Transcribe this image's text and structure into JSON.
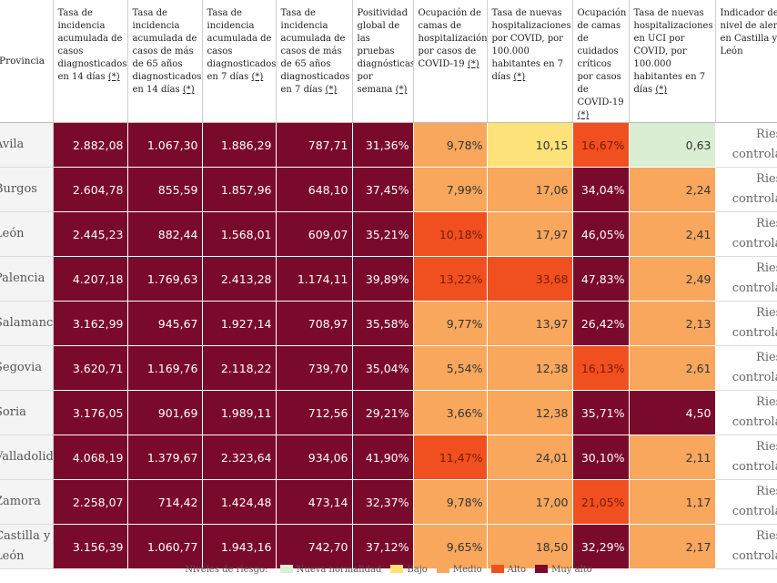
{
  "headers": [
    "Provincia",
    "Tasa de incidencia acumulada de casos diagnosticados en 14 días (*)",
    "Tasa de incidencia acumulada de casos de más de 65 años diagnosticados en 14 días (*)",
    "Tasa de incidencia acumulada de casos diagnosticados en 7 días (*)",
    "Tasa de incidencia acumulada de casos de más de 65 años diagnosticados en 7 días (*)",
    "Positividad global de las pruebas diagnósticas por semana (*)",
    "Ocupación de camas de hospitalización por casos de COVID-19 (*)",
    "Tasa de nuevas hospitalizaciones por COVID, por 100.000 habitantes en 7 días (*)",
    "Ocupación de camas de cuidados críticos por casos de COVID-19 (*)",
    "Tasa de nuevas hospitalizaciones en UCI por COVID, por 100.000 habitantes en 7 días (*)",
    "Indicador de nivel de alerta en Castilla y León"
  ],
  "colors": {
    "muy_alto": "#7a0a2c",
    "alto": "#f0501f",
    "medio": "#f8a75d",
    "bajo": "#fde27a",
    "nueva_normalidad": "#d9eed3"
  },
  "rows": [
    {
      "name": "Ávila",
      "values": [
        "2.882,08",
        "1.067,30",
        "1.886,29",
        "787,71",
        "31,36%",
        "9,78%",
        "10,15",
        "16,67%",
        "0,63"
      ],
      "levels": [
        "mu",
        "mu",
        "mu",
        "mu",
        "mu",
        "me",
        "ba",
        "al",
        "nn"
      ],
      "indicator": "Riesgo controlado"
    },
    {
      "name": "Burgos",
      "values": [
        "2.604,78",
        "855,59",
        "1.857,96",
        "648,10",
        "37,45%",
        "7,99%",
        "17,06",
        "34,04%",
        "2,24"
      ],
      "levels": [
        "mu",
        "mu",
        "mu",
        "mu",
        "mu",
        "me",
        "me",
        "mu",
        "me"
      ],
      "indicator": "Riesgo controlado"
    },
    {
      "name": "León",
      "values": [
        "2.445,23",
        "882,44",
        "1.568,01",
        "609,07",
        "35,21%",
        "10,18%",
        "17,97",
        "46,05%",
        "2,41"
      ],
      "levels": [
        "mu",
        "mu",
        "mu",
        "mu",
        "mu",
        "al",
        "me",
        "mu",
        "me"
      ],
      "indicator": "Riesgo controlado"
    },
    {
      "name": "Palencia",
      "values": [
        "4.207,18",
        "1.769,63",
        "2.413,28",
        "1.174,11",
        "39,89%",
        "13,22%",
        "33,68",
        "47,83%",
        "2,49"
      ],
      "levels": [
        "mu",
        "mu",
        "mu",
        "mu",
        "mu",
        "al",
        "al",
        "mu",
        "me"
      ],
      "indicator": "Riesgo controlado"
    },
    {
      "name": "Salamanca",
      "values": [
        "3.162,99",
        "945,67",
        "1.927,14",
        "708,97",
        "35,58%",
        "9,77%",
        "13,97",
        "26,42%",
        "2,13"
      ],
      "levels": [
        "mu",
        "mu",
        "mu",
        "mu",
        "mu",
        "me",
        "me",
        "mu",
        "me"
      ],
      "indicator": "Riesgo controlado"
    },
    {
      "name": "Segovia",
      "values": [
        "3.620,71",
        "1.169,76",
        "2.118,22",
        "739,70",
        "35,04%",
        "5,54%",
        "12,38",
        "16,13%",
        "2,61"
      ],
      "levels": [
        "mu",
        "mu",
        "mu",
        "mu",
        "mu",
        "me",
        "me",
        "al",
        "me"
      ],
      "indicator": "Riesgo controlado"
    },
    {
      "name": "Soria",
      "values": [
        "3.176,05",
        "901,69",
        "1.989,11",
        "712,56",
        "29,21%",
        "3,66%",
        "12,38",
        "35,71%",
        "4,50"
      ],
      "levels": [
        "mu",
        "mu",
        "mu",
        "mu",
        "mu",
        "me",
        "me",
        "mu",
        "mu"
      ],
      "indicator": "Riesgo controlado"
    },
    {
      "name": "Valladolid",
      "values": [
        "4.068,19",
        "1.379,67",
        "2.323,64",
        "934,06",
        "41,90%",
        "11,47%",
        "24,01",
        "30,10%",
        "2,11"
      ],
      "levels": [
        "mu",
        "mu",
        "mu",
        "mu",
        "mu",
        "al",
        "me",
        "mu",
        "me"
      ],
      "indicator": "Riesgo controlado"
    },
    {
      "name": "Zamora",
      "values": [
        "2.258,07",
        "714,42",
        "1.424,48",
        "473,14",
        "32,37%",
        "9,78%",
        "17,00",
        "21,05%",
        "1,17"
      ],
      "levels": [
        "mu",
        "mu",
        "mu",
        "mu",
        "mu",
        "me",
        "me",
        "al",
        "me"
      ],
      "indicator": "Riesgo controlado"
    },
    {
      "name": "Castilla y León",
      "values": [
        "3.156,39",
        "1.060,77",
        "1.943,16",
        "742,70",
        "37,12%",
        "9,65%",
        "18,50",
        "32,29%",
        "2,17"
      ],
      "levels": [
        "mu",
        "mu",
        "mu",
        "mu",
        "mu",
        "me",
        "me",
        "mu",
        "me"
      ],
      "indicator": "Riesgo controlado"
    }
  ],
  "legend": {
    "title": "Niveles de riesgo:",
    "items": [
      {
        "label": "Nueva normalidad",
        "level": "nn"
      },
      {
        "label": "Bajo",
        "level": "ba"
      },
      {
        "label": "Medio",
        "level": "me"
      },
      {
        "label": "Alto",
        "level": "al"
      },
      {
        "label": "Muy alto",
        "level": "mu"
      }
    ]
  }
}
